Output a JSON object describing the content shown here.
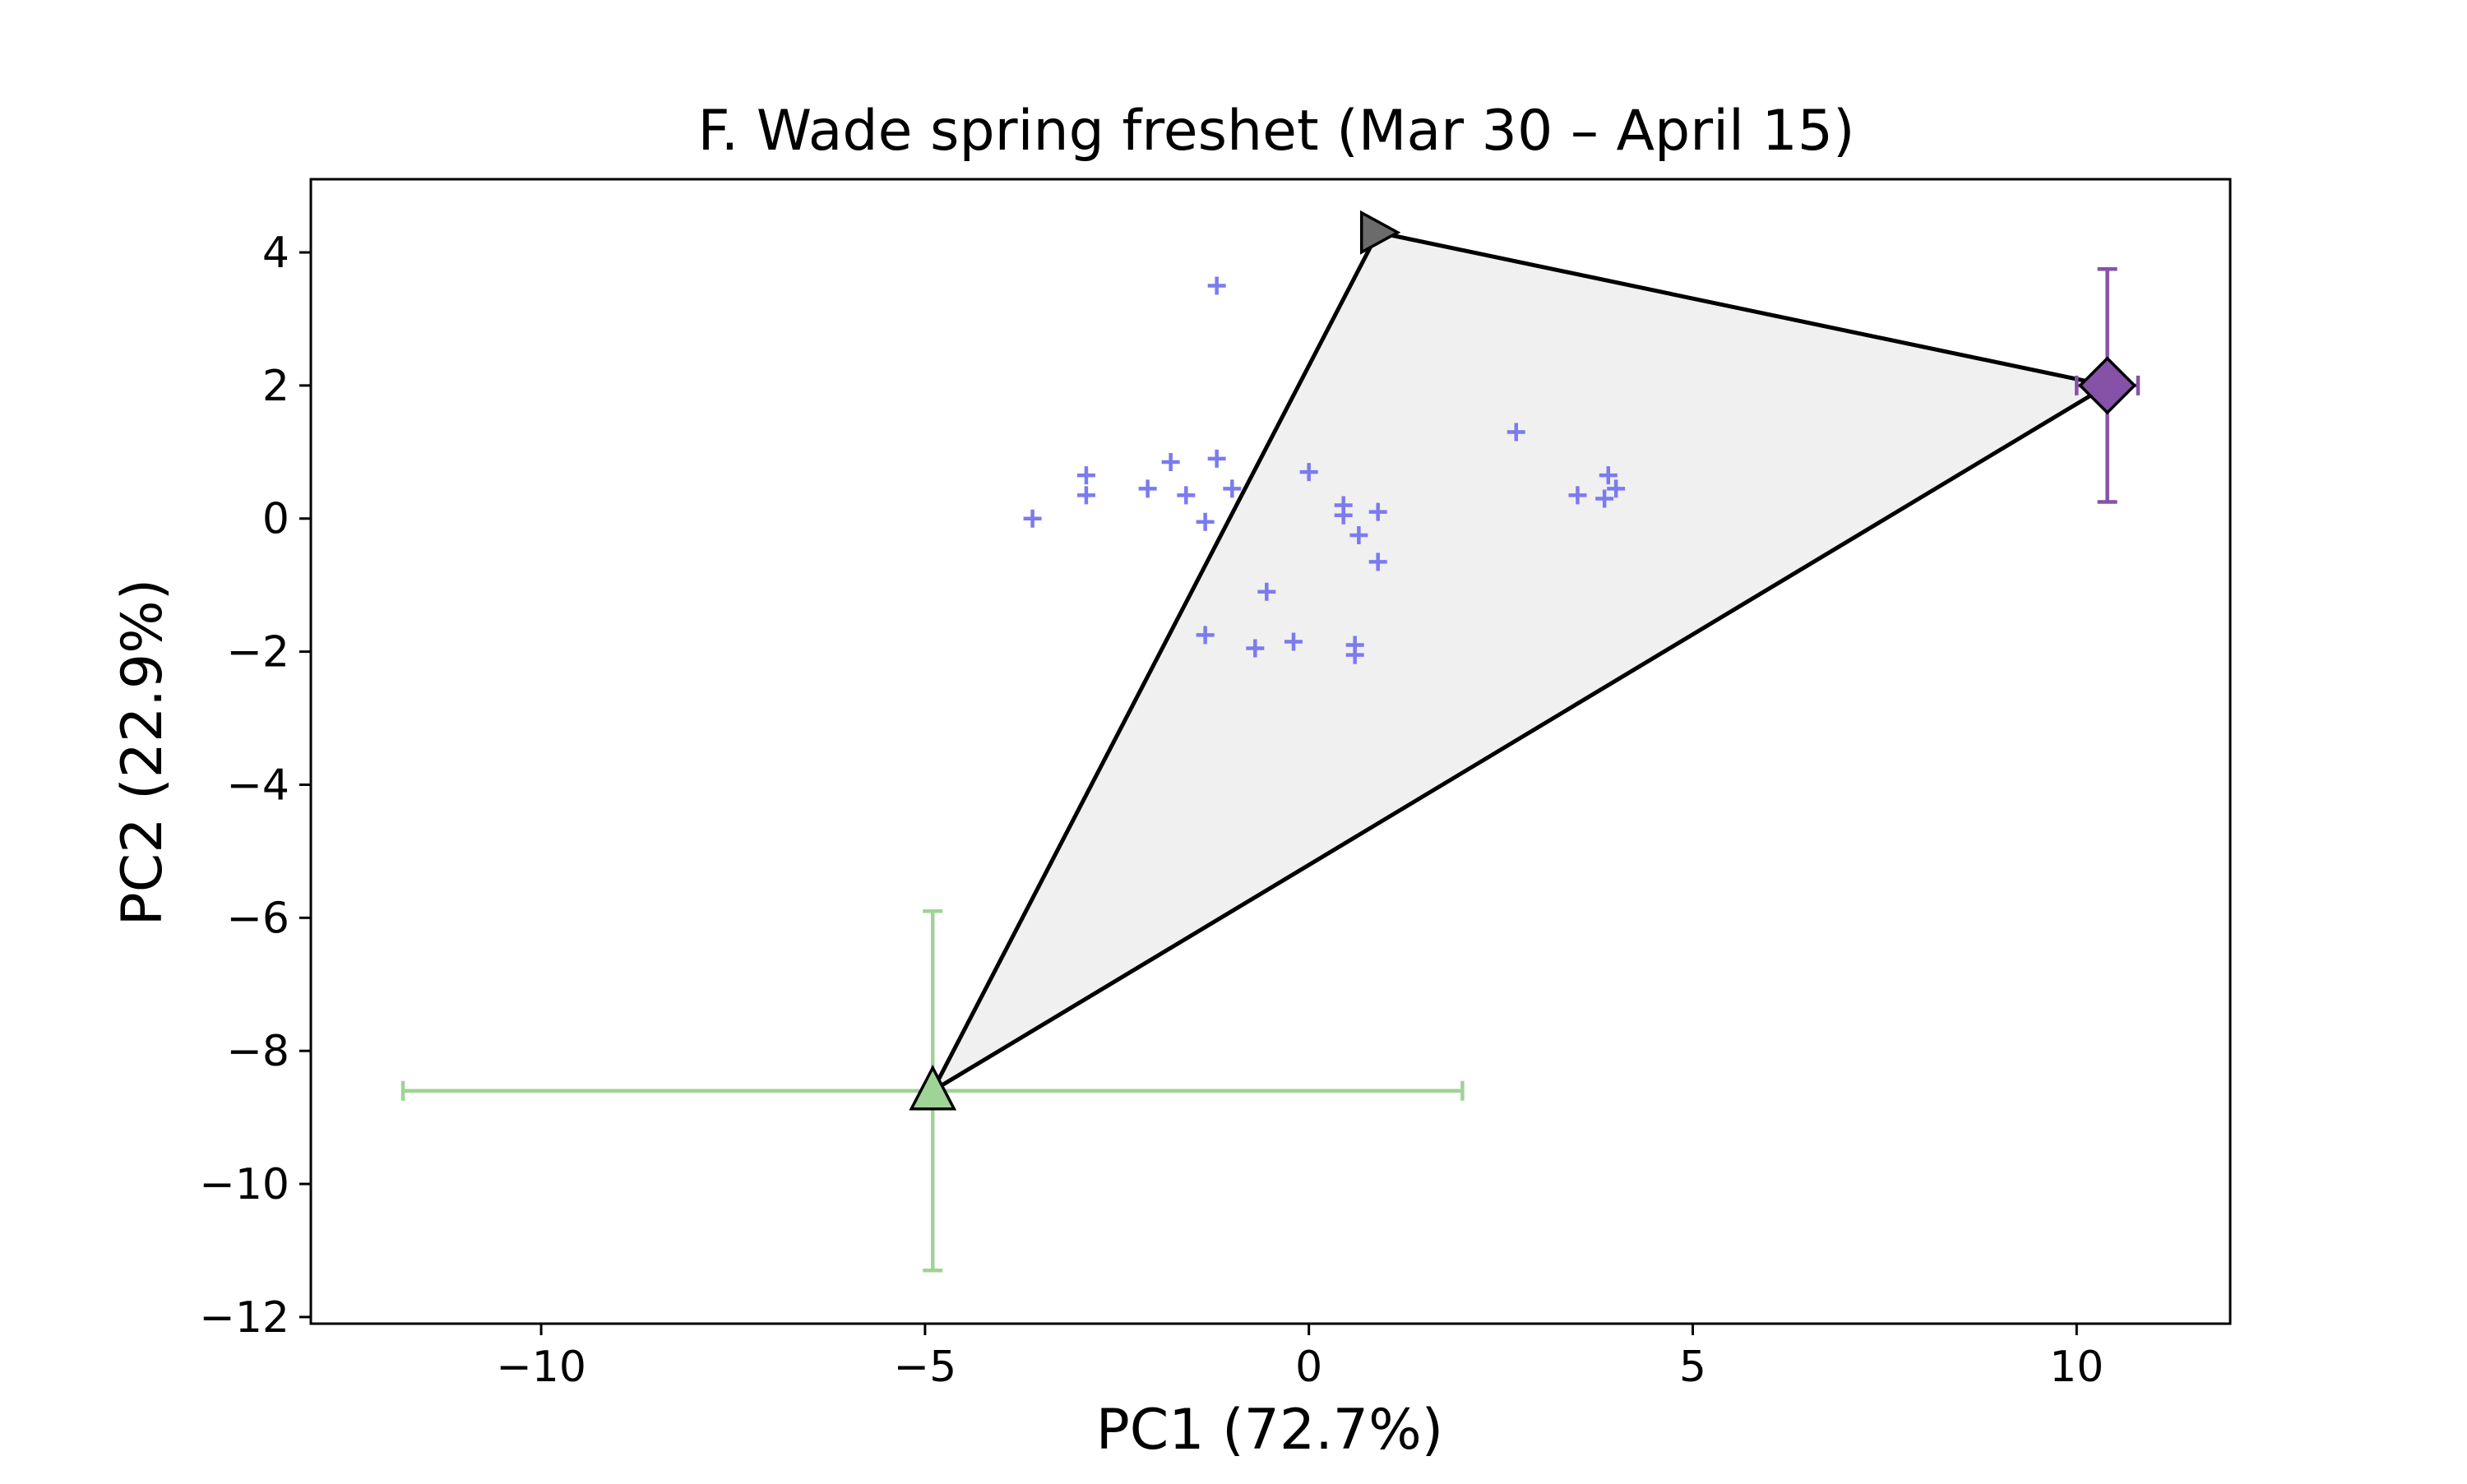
{
  "chart_data": {
    "type": "scatter",
    "title": "F. Wade spring freshet (Mar 30 – April 15)",
    "xlabel": "PC1 (72.7%)",
    "ylabel": "PC2 (22.9%)",
    "xlim": [
      -13,
      12
    ],
    "ylim": [
      -12.1,
      5.1
    ],
    "xticks": [
      -10,
      -5,
      0,
      5,
      10
    ],
    "xtick_labels": [
      "−10",
      "−5",
      "0",
      "5",
      "10"
    ],
    "yticks": [
      4,
      2,
      0,
      -2,
      -4,
      -6,
      -8,
      -10,
      -12
    ],
    "ytick_labels": [
      "4",
      "2",
      "0",
      "−2",
      "−4",
      "−6",
      "−8",
      "−10",
      "−12"
    ],
    "grid": false,
    "legend": "none",
    "mixing_polygon": {
      "vertices": [
        [
          0.9,
          4.3
        ],
        [
          10.4,
          2.0
        ],
        [
          -4.9,
          -8.6
        ]
      ],
      "fill": "#f0f0f0",
      "edge": "#000000"
    },
    "end_members": [
      {
        "marker": "triangle-right",
        "x": 0.9,
        "y": 4.3,
        "color": "#6b6b6b"
      },
      {
        "marker": "diamond",
        "x": 10.4,
        "y": 2.0,
        "xerr": 0.4,
        "yerr": [
          1.75,
          1.75
        ],
        "color": "#8652a8"
      },
      {
        "marker": "triangle-up",
        "x": -4.9,
        "y": -8.6,
        "xerr": [
          6.9,
          6.9
        ],
        "yerr": [
          2.7,
          2.7
        ],
        "color": "#9ed495"
      }
    ],
    "series": [
      {
        "marker": "plus",
        "color": "#7b7bef",
        "points": [
          [
            -1.2,
            3.5
          ],
          [
            2.7,
            1.3
          ],
          [
            -3.6,
            0.0
          ],
          [
            -2.9,
            0.35
          ],
          [
            -2.9,
            0.65
          ],
          [
            -2.1,
            0.45
          ],
          [
            -1.8,
            0.85
          ],
          [
            -1.6,
            0.35
          ],
          [
            -1.2,
            0.9
          ],
          [
            -1.35,
            -0.05
          ],
          [
            -1.0,
            0.45
          ],
          [
            0.0,
            0.7
          ],
          [
            0.45,
            0.2
          ],
          [
            0.45,
            0.05
          ],
          [
            0.9,
            0.1
          ],
          [
            0.65,
            -0.25
          ],
          [
            0.9,
            -0.65
          ],
          [
            -0.55,
            -1.1
          ],
          [
            -1.35,
            -1.75
          ],
          [
            -0.7,
            -1.95
          ],
          [
            -0.2,
            -1.85
          ],
          [
            0.6,
            -1.9
          ],
          [
            0.6,
            -2.05
          ],
          [
            3.5,
            0.35
          ],
          [
            3.9,
            0.65
          ],
          [
            3.85,
            0.3
          ],
          [
            4.0,
            0.45
          ]
        ]
      }
    ]
  }
}
